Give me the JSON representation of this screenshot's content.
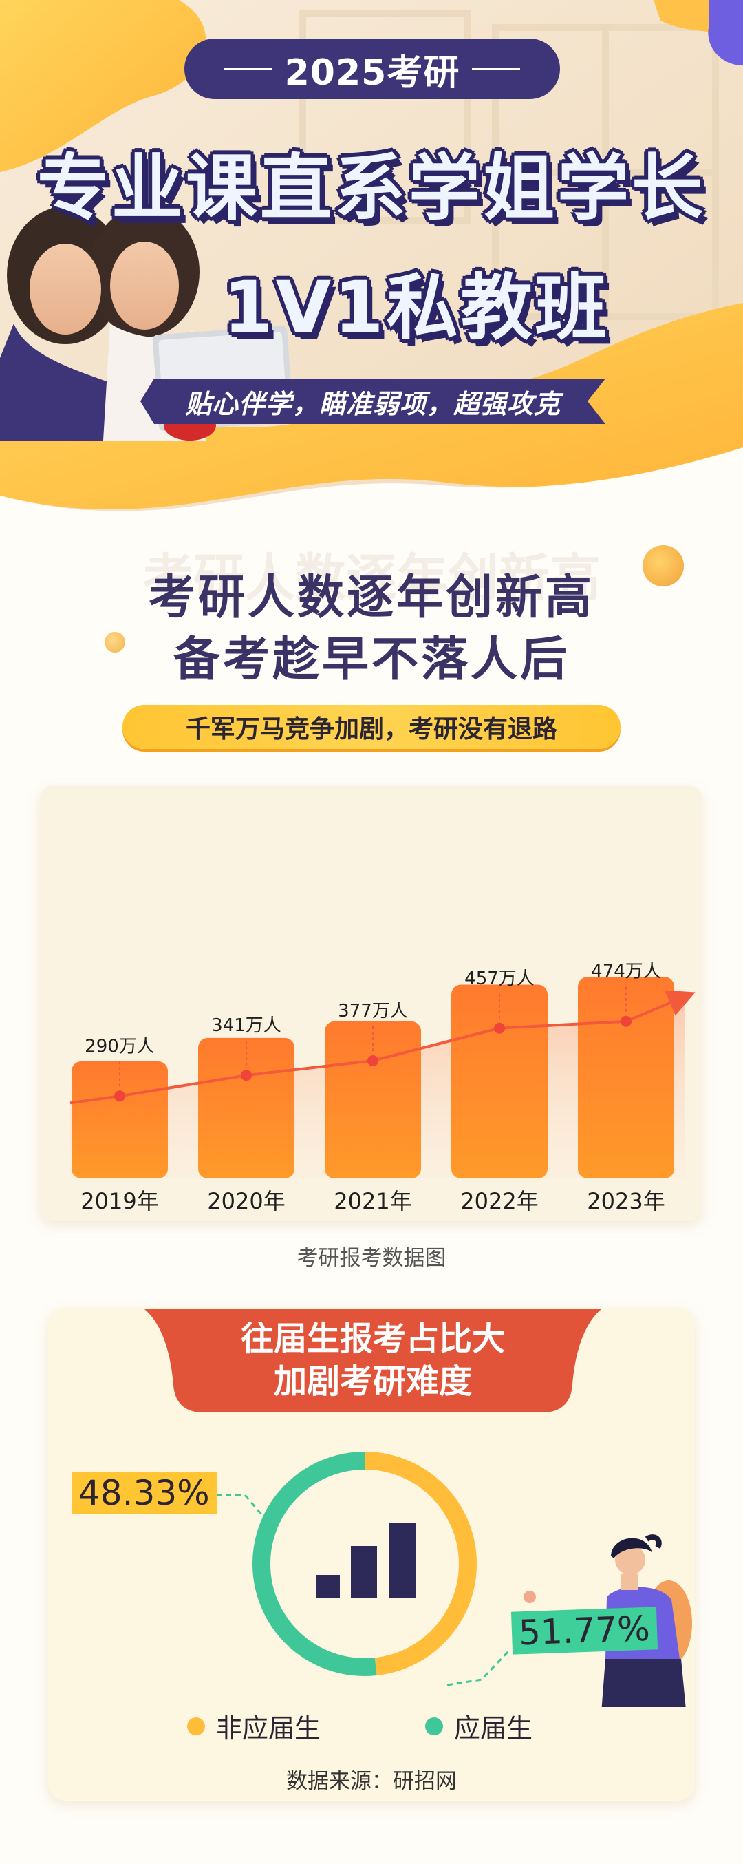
{
  "hero": {
    "badge": "2025考研",
    "title_line1": "专业课直系学姐学长",
    "title_line2": "1V1私教班",
    "slogan": "贴心伴学，瞄准弱项，超强攻克"
  },
  "section2": {
    "heading_line1": "考研人数逐年创新高",
    "heading_line2": "备考趁早不落人后",
    "subtitle": "千军万马竞争加剧，考研没有退路",
    "caption": "考研报考数据图"
  },
  "section3": {
    "title_line1": "往届生报考占比大",
    "title_line2": "加剧考研难度",
    "source": "数据来源：研招网"
  },
  "chart_data": [
    {
      "type": "bar",
      "categories": [
        "2019年",
        "2020年",
        "2021年",
        "2022年",
        "2023年"
      ],
      "values": [
        290,
        341,
        377,
        457,
        474
      ],
      "data_labels": [
        "290万人",
        "341万人",
        "377万人",
        "457万人",
        "474万人"
      ],
      "title": "",
      "xlabel": "",
      "ylabel": "",
      "ylim": [
        0,
        500
      ],
      "grid": false,
      "colors": {
        "bar_top": "#ff7a2e",
        "bar_bottom": "#ff9a2a",
        "trend": "#f25a3c",
        "trend_fill": "#fbd0b4"
      }
    },
    {
      "type": "pie",
      "categories": [
        "非应届生",
        "应届生"
      ],
      "values": [
        48.33,
        51.77
      ],
      "labels": [
        "48.33%",
        "51.77%"
      ],
      "colors": [
        "#ffbd3a",
        "#3fc79a"
      ],
      "legend": "bottom"
    }
  ],
  "colors": {
    "navy": "#3e3478",
    "orange_accent": "#ffc533",
    "red_tab": "#e2543a"
  }
}
